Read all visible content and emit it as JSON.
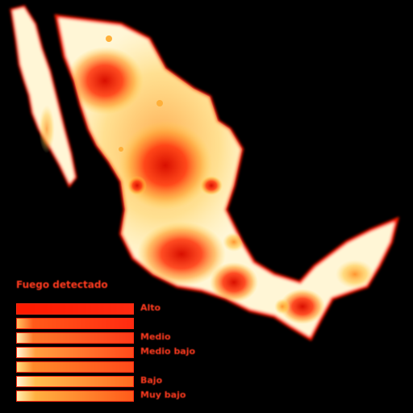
{
  "map": {
    "region": "Mexico",
    "colors": {
      "background": "#000000",
      "land": "#fff6d6",
      "border": "#ff1e00",
      "heat_low": "#ffd23a",
      "heat_mid": "#ff7a1a",
      "heat_high": "#e81400"
    }
  },
  "legend": {
    "title": "Fuego detectado",
    "items": [
      {
        "label": "Alto"
      },
      {
        "label": ""
      },
      {
        "label": "Medio"
      },
      {
        "label": "Medio bajo"
      },
      {
        "label": ""
      },
      {
        "label": "Bajo"
      },
      {
        "label": "Muy bajo"
      }
    ]
  }
}
